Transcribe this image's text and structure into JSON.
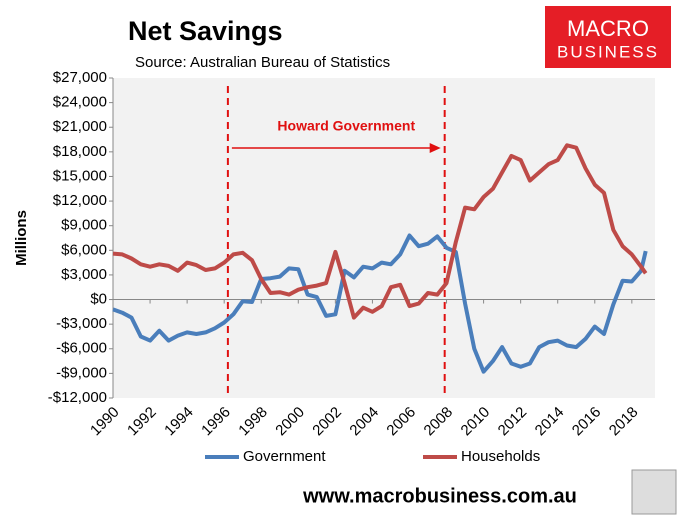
{
  "chart_data": {
    "type": "line",
    "title": "Net Savings",
    "subtitle": "Source: Australian Bureau of Statistics",
    "ylabel": "Millions",
    "logo": [
      "MACRO",
      "BUSINESS"
    ],
    "footer": "www.macrobusiness.com.au",
    "annotation": {
      "text": "Howard Government",
      "start": 1996.2,
      "end": 2007.9,
      "color": "#e01010"
    },
    "x": [
      1990,
      1990.5,
      1991,
      1991.5,
      1992,
      1992.5,
      1993,
      1993.5,
      1994,
      1994.5,
      1995,
      1995.5,
      1996,
      1996.5,
      1997,
      1997.5,
      1998,
      1998.5,
      1999,
      1999.5,
      2000,
      2000.5,
      2001,
      2001.5,
      2002,
      2002.5,
      2003,
      2003.5,
      2004,
      2004.5,
      2005,
      2005.5,
      2006,
      2006.5,
      2007,
      2007.5,
      2008,
      2008.5,
      2009,
      2009.5,
      2010,
      2010.5,
      2011,
      2011.5,
      2012,
      2012.5,
      2013,
      2013.5,
      2014,
      2014.5,
      2015,
      2015.5,
      2016,
      2016.5,
      2017,
      2017.5,
      2018,
      2018.5,
      2018.75
    ],
    "series": [
      {
        "name": "Government",
        "color": "#4a7ebb",
        "values": [
          -1200,
          -1600,
          -2200,
          -4500,
          -5000,
          -3800,
          -5000,
          -4400,
          -4000,
          -4200,
          -4000,
          -3500,
          -2800,
          -1800,
          -200,
          -300,
          2500,
          2600,
          2800,
          3800,
          3700,
          600,
          300,
          -2000,
          -1800,
          3500,
          2700,
          4000,
          3800,
          4500,
          4300,
          5500,
          7800,
          6500,
          6800,
          7700,
          6300,
          5800,
          -500,
          -6000,
          -8800,
          -7500,
          -5800,
          -7800,
          -8200,
          -7800,
          -5800,
          -5200,
          -5000,
          -5600,
          -5800,
          -4800,
          -3300,
          -4200,
          -600,
          2300,
          2200,
          3500,
          5900
        ]
      },
      {
        "name": "Households",
        "color": "#be4b48",
        "values": [
          5600,
          5500,
          5000,
          4300,
          4000,
          4300,
          4100,
          3500,
          4500,
          4200,
          3600,
          3800,
          4500,
          5500,
          5700,
          4800,
          2500,
          800,
          900,
          600,
          1200,
          1500,
          1700,
          2000,
          5800,
          2000,
          -2200,
          -1000,
          -1500,
          -800,
          1500,
          1800,
          -800,
          -500,
          800,
          600,
          2000,
          7000,
          11200,
          11000,
          12500,
          13500,
          15500,
          17500,
          17000,
          14500,
          15500,
          16500,
          17000,
          18800,
          18500,
          16000,
          14000,
          13000,
          8500,
          6500,
          5500,
          4000,
          3200
        ]
      }
    ],
    "xlim": [
      1990,
      2019.25
    ],
    "xticks": [
      1990,
      1992,
      1994,
      1996,
      1998,
      2000,
      2002,
      2004,
      2006,
      2008,
      2010,
      2012,
      2014,
      2016,
      2018
    ],
    "ylim": [
      -12000,
      27000
    ],
    "yticks": [
      {
        "value": -12000,
        "label": "-$12,000"
      },
      {
        "value": -9000,
        "label": "-$9,000"
      },
      {
        "value": -6000,
        "label": "-$6,000"
      },
      {
        "value": -3000,
        "label": "-$3,000"
      },
      {
        "value": 0,
        "label": "$0"
      },
      {
        "value": 3000,
        "label": "$3,000"
      },
      {
        "value": 6000,
        "label": "$6,000"
      },
      {
        "value": 9000,
        "label": "$9,000"
      },
      {
        "value": 12000,
        "label": "$12,000"
      },
      {
        "value": 15000,
        "label": "$15,000"
      },
      {
        "value": 18000,
        "label": "$18,000"
      },
      {
        "value": 21000,
        "label": "$21,000"
      },
      {
        "value": 24000,
        "label": "$24,000"
      },
      {
        "value": 27000,
        "label": "$27,000"
      }
    ],
    "legend": "bottom"
  }
}
